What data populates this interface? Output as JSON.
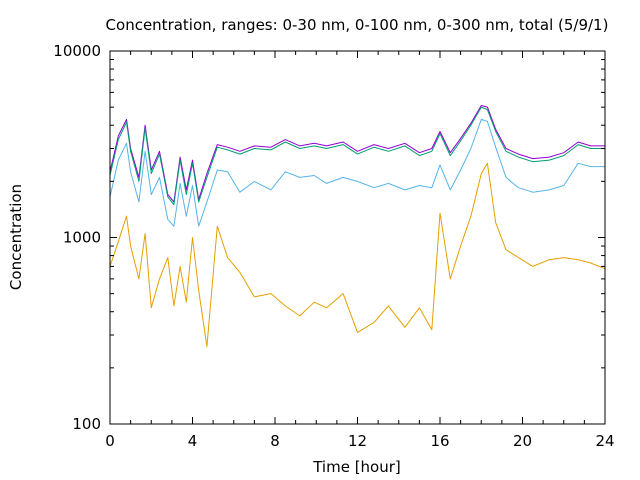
{
  "chart_data": {
    "type": "line",
    "title": "Concentration, ranges: 0-30 nm, 0-100 nm, 0-300 nm, total (5/9/1)",
    "xlabel": "Time [hour]",
    "ylabel": "Concentration",
    "xlim": [
      0,
      24
    ],
    "ylim": [
      100,
      10000
    ],
    "yscale": "log",
    "grid": false,
    "legend": "none",
    "x_ticks": [
      "0",
      "4",
      "8",
      "12",
      "16",
      "20",
      "24"
    ],
    "x_tick_values": [
      0,
      4,
      8,
      12,
      16,
      20,
      24
    ],
    "y_ticks": [
      "100",
      "1000",
      "10000"
    ],
    "y_tick_values": [
      100,
      1000,
      10000
    ],
    "x": [
      0,
      0.4,
      0.8,
      1.0,
      1.4,
      1.7,
      2.0,
      2.4,
      2.8,
      3.1,
      3.4,
      3.7,
      4.0,
      4.3,
      4.7,
      5.2,
      5.7,
      6.3,
      7.0,
      7.8,
      8.5,
      9.2,
      9.9,
      10.5,
      11.3,
      12.0,
      12.8,
      13.5,
      14.3,
      15.0,
      15.6,
      16.0,
      16.5,
      17.0,
      17.5,
      18.0,
      18.3,
      18.7,
      19.2,
      19.8,
      20.5,
      21.3,
      22.0,
      22.7,
      23.3,
      24.0
    ],
    "series": [
      {
        "color": "#9400d3",
        "values": [
          2250,
          3500,
          4300,
          3000,
          2100,
          4000,
          2300,
          2900,
          1700,
          1550,
          2700,
          1800,
          2600,
          1600,
          2200,
          3150,
          3050,
          2900,
          3100,
          3050,
          3350,
          3100,
          3200,
          3100,
          3250,
          2900,
          3150,
          3000,
          3200,
          2850,
          3000,
          3700,
          2850,
          3400,
          4100,
          5100,
          5000,
          3800,
          3000,
          2800,
          2650,
          2700,
          2850,
          3250,
          3100,
          3100
        ]
      },
      {
        "color": "#009e73",
        "values": [
          2150,
          3350,
          4150,
          2900,
          2000,
          3850,
          2200,
          2800,
          1650,
          1500,
          2600,
          1700,
          2500,
          1550,
          2100,
          3050,
          2950,
          2800,
          3000,
          2950,
          3250,
          3000,
          3100,
          3000,
          3150,
          2800,
          3050,
          2900,
          3100,
          2750,
          2900,
          3600,
          2750,
          3300,
          4000,
          5000,
          4850,
          3700,
          2900,
          2700,
          2550,
          2600,
          2750,
          3150,
          3000,
          3000
        ]
      },
      {
        "color": "#56b4e9",
        "values": [
          1650,
          2600,
          3200,
          2250,
          1550,
          2900,
          1700,
          2100,
          1250,
          1150,
          1950,
          1300,
          1900,
          1150,
          1550,
          2300,
          2250,
          1750,
          2000,
          1800,
          2250,
          2100,
          2150,
          1950,
          2100,
          2000,
          1850,
          1950,
          1800,
          1900,
          1850,
          2450,
          1800,
          2300,
          3000,
          4300,
          4200,
          3050,
          2100,
          1850,
          1750,
          1800,
          1900,
          2500,
          2400,
          2400
        ]
      },
      {
        "color": "#e69f00",
        "values": [
          700,
          950,
          1300,
          900,
          600,
          1050,
          420,
          600,
          780,
          430,
          700,
          450,
          1000,
          520,
          260,
          1150,
          780,
          650,
          480,
          500,
          430,
          380,
          450,
          420,
          500,
          310,
          350,
          430,
          330,
          420,
          320,
          1350,
          600,
          900,
          1300,
          2200,
          2500,
          1200,
          860,
          780,
          700,
          760,
          780,
          760,
          730,
          680
        ]
      }
    ]
  }
}
